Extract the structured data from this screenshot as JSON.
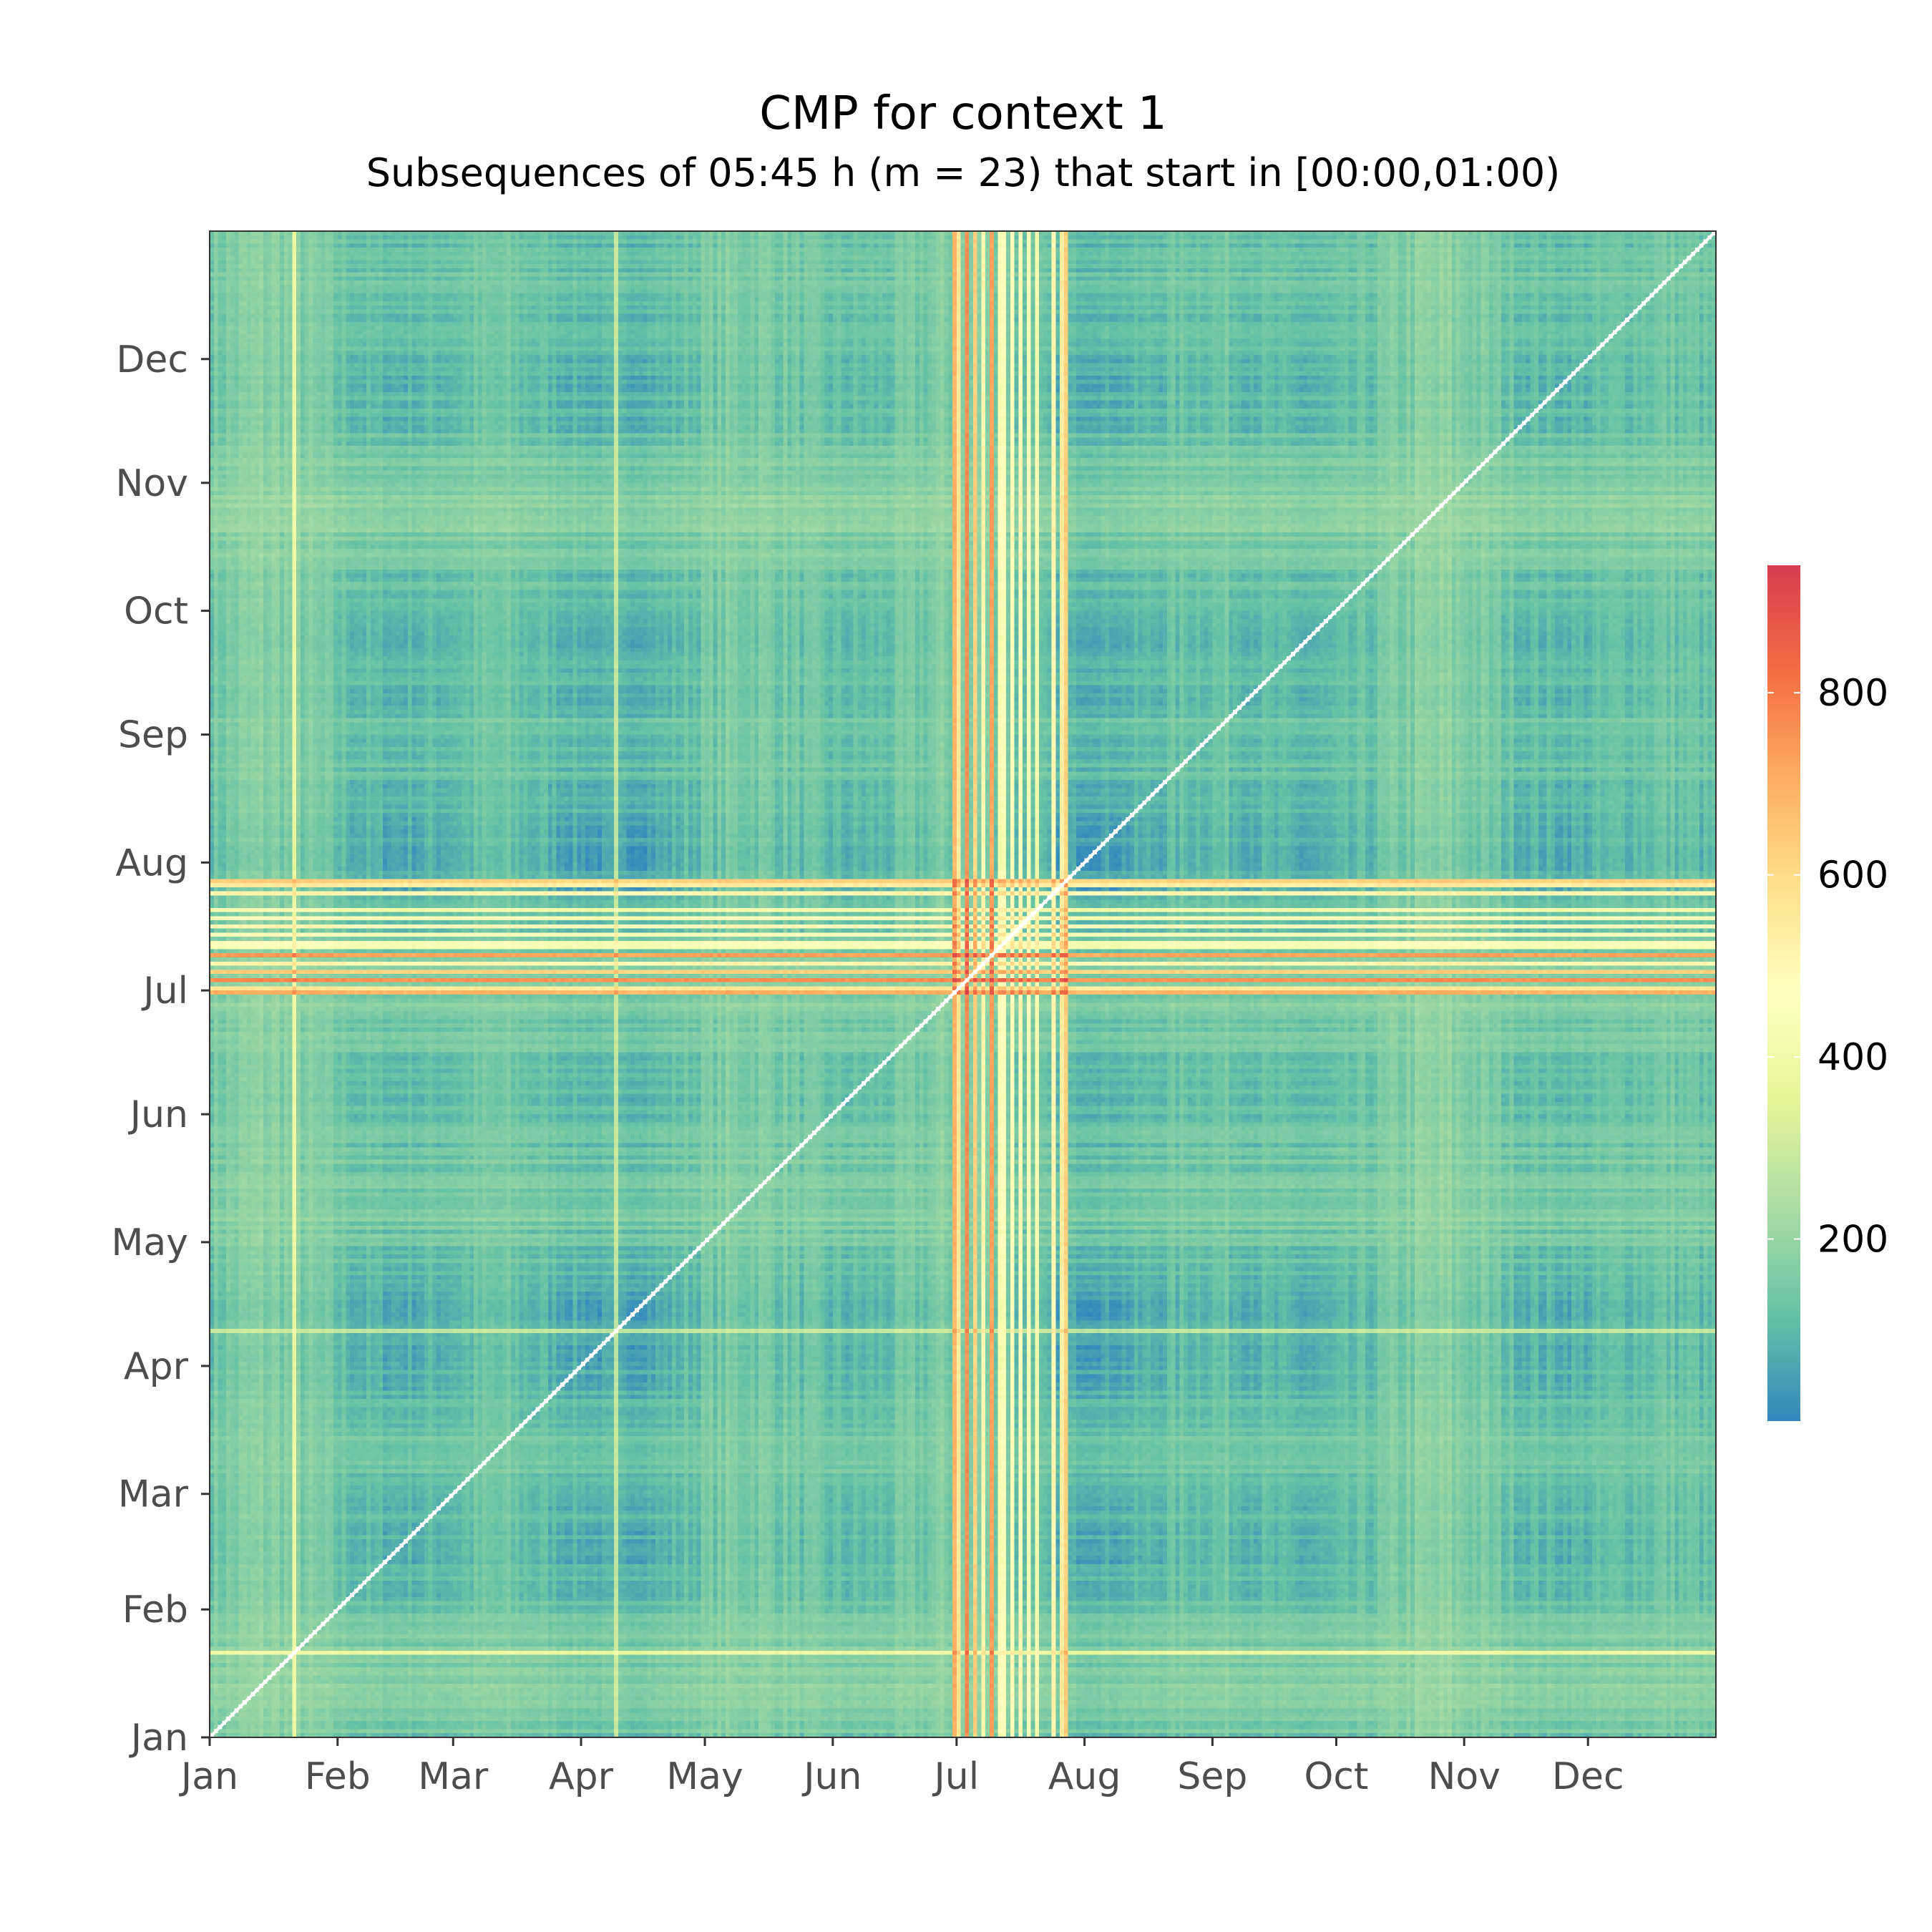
{
  "chart_data": {
    "type": "heatmap",
    "title": "CMP for context 1",
    "subtitle": "Subsequences of 05:45 h (m = 23) that start in [00:00,01:00)",
    "xlabel": "",
    "ylabel": "",
    "x_tick_labels": [
      "Jan",
      "Feb",
      "Mar",
      "Apr",
      "May",
      "Jun",
      "Jul",
      "Aug",
      "Sep",
      "Oct",
      "Nov",
      "Dec"
    ],
    "y_tick_labels": [
      "Jan",
      "Feb",
      "Mar",
      "Apr",
      "May",
      "Jun",
      "Jul",
      "Aug",
      "Sep",
      "Oct",
      "Nov",
      "Dec"
    ],
    "month_start_days": [
      0,
      31,
      59,
      90,
      120,
      151,
      181,
      212,
      243,
      273,
      304,
      334
    ],
    "days_in_year": 365,
    "diagonal_value": 0,
    "colorbar": {
      "min": 0,
      "max": 940,
      "ticks": [
        200,
        400,
        600,
        800
      ],
      "colors": [
        "#3288bd",
        "#66c2a5",
        "#abdda4",
        "#e6f598",
        "#ffffbf",
        "#fee08b",
        "#fdae61",
        "#f46d43",
        "#d53e4f"
      ]
    },
    "high_cost_days": [
      {
        "day": 180,
        "value": 780
      },
      {
        "day": 181,
        "value": 620
      },
      {
        "day": 183,
        "value": 860
      },
      {
        "day": 185,
        "value": 700
      },
      {
        "day": 187,
        "value": 560
      },
      {
        "day": 189,
        "value": 820
      },
      {
        "day": 191,
        "value": 480
      },
      {
        "day": 192,
        "value": 500
      },
      {
        "day": 194,
        "value": 520
      },
      {
        "day": 196,
        "value": 540
      },
      {
        "day": 198,
        "value": 500
      },
      {
        "day": 200,
        "value": 460
      },
      {
        "day": 204,
        "value": 560
      },
      {
        "day": 206,
        "value": 600
      },
      {
        "day": 207,
        "value": 700
      },
      {
        "day": 20,
        "value": 420
      },
      {
        "day": 98,
        "value": 300
      }
    ]
  }
}
